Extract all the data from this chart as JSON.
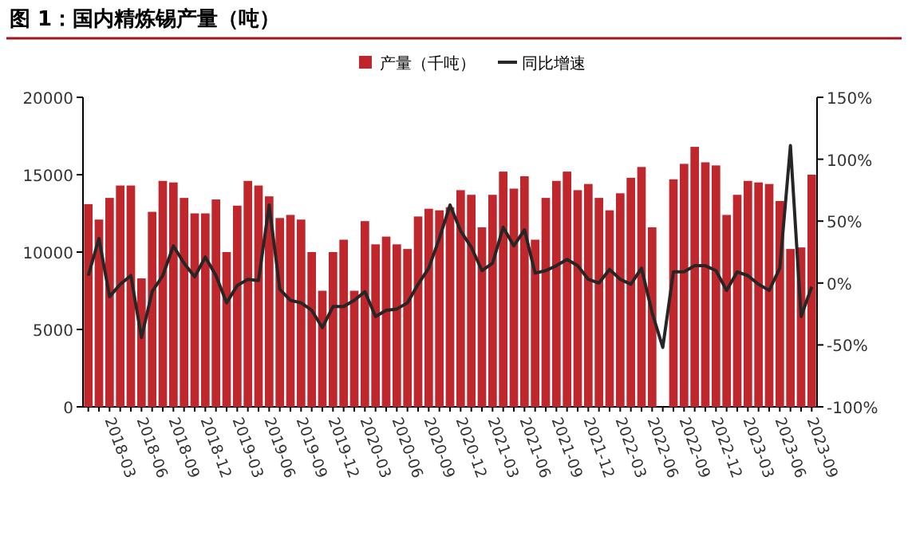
{
  "chart_data": {
    "type": "bar",
    "title": "图 1：国内精炼锡产量（吨）",
    "categories": [
      null,
      null,
      "2018-03",
      null,
      null,
      "2018-06",
      null,
      null,
      "2018-09",
      null,
      null,
      "2018-12",
      null,
      null,
      "2019-03",
      null,
      null,
      "2019-06",
      null,
      null,
      "2019-09",
      null,
      null,
      "2019-12",
      null,
      null,
      "2020-03",
      null,
      null,
      "2020-06",
      null,
      null,
      "2020-09",
      null,
      null,
      "2020-12",
      null,
      null,
      "2021-03",
      null,
      null,
      "2021-06",
      null,
      null,
      "2021-09",
      null,
      null,
      "2021-12",
      null,
      null,
      "2022-03",
      null,
      null,
      "2022-06",
      null,
      null,
      "2022-09",
      null,
      null,
      "2022-12",
      null,
      null,
      "2023-03",
      null,
      null,
      "2023-06",
      null,
      null,
      "2023-09"
    ],
    "series": [
      {
        "name": "产量（千吨）",
        "color": "#c0272d",
        "values": [
          13100,
          12100,
          13500,
          14300,
          14300,
          8300,
          12600,
          14600,
          14500,
          13500,
          12500,
          12500,
          13400,
          10000,
          13000,
          14600,
          14300,
          13600,
          12200,
          12400,
          12100,
          10000,
          7500,
          10000,
          10800,
          7500,
          12000,
          10500,
          11000,
          10500,
          10200,
          12300,
          12800,
          12700,
          12900,
          14000,
          13700,
          11600,
          13700,
          15200,
          14100,
          14900,
          10800,
          13500,
          14600,
          15200,
          14000,
          14400,
          13500,
          12700,
          13800,
          14800,
          15500,
          11600,
          null,
          14700,
          15700,
          16800,
          15800,
          15600,
          12400,
          13700,
          14600,
          14500,
          14400,
          13300,
          10200,
          10300,
          15000
        ]
      },
      {
        "name": "同比增速",
        "type": "line",
        "axis": "y2",
        "color": "#262626",
        "values": [
          6,
          36,
          -11,
          -1,
          6,
          -44,
          -7,
          6,
          30,
          16,
          5,
          21,
          6,
          -16,
          -2,
          3,
          2,
          63,
          -5,
          -14,
          -16,
          -22,
          -36,
          -19,
          -19,
          -14,
          -7,
          -27,
          -22,
          -21,
          -16,
          -1,
          12,
          36,
          63,
          42,
          29,
          10,
          16,
          45,
          30,
          43,
          8,
          10,
          14,
          19,
          14,
          3,
          0,
          11,
          3,
          -1,
          12,
          -24,
          -52,
          9,
          9,
          14,
          14,
          10,
          -6,
          9,
          6,
          -1,
          -6,
          12,
          111,
          -27,
          -3
        ]
      }
    ],
    "ylim": [
      0,
      20000
    ],
    "yticks": [
      0,
      5000,
      10000,
      15000,
      20000
    ],
    "y2lim": [
      -100,
      150
    ],
    "y2ticks": [
      {
        "value": -100,
        "label": "-100%"
      },
      {
        "value": -50,
        "label": "-50%"
      },
      {
        "value": 0,
        "label": "0%"
      },
      {
        "value": 50,
        "label": "50%"
      },
      {
        "value": 100,
        "label": "100%"
      },
      {
        "value": 150,
        "label": "150%"
      }
    ],
    "grid": false,
    "legend": "top"
  }
}
